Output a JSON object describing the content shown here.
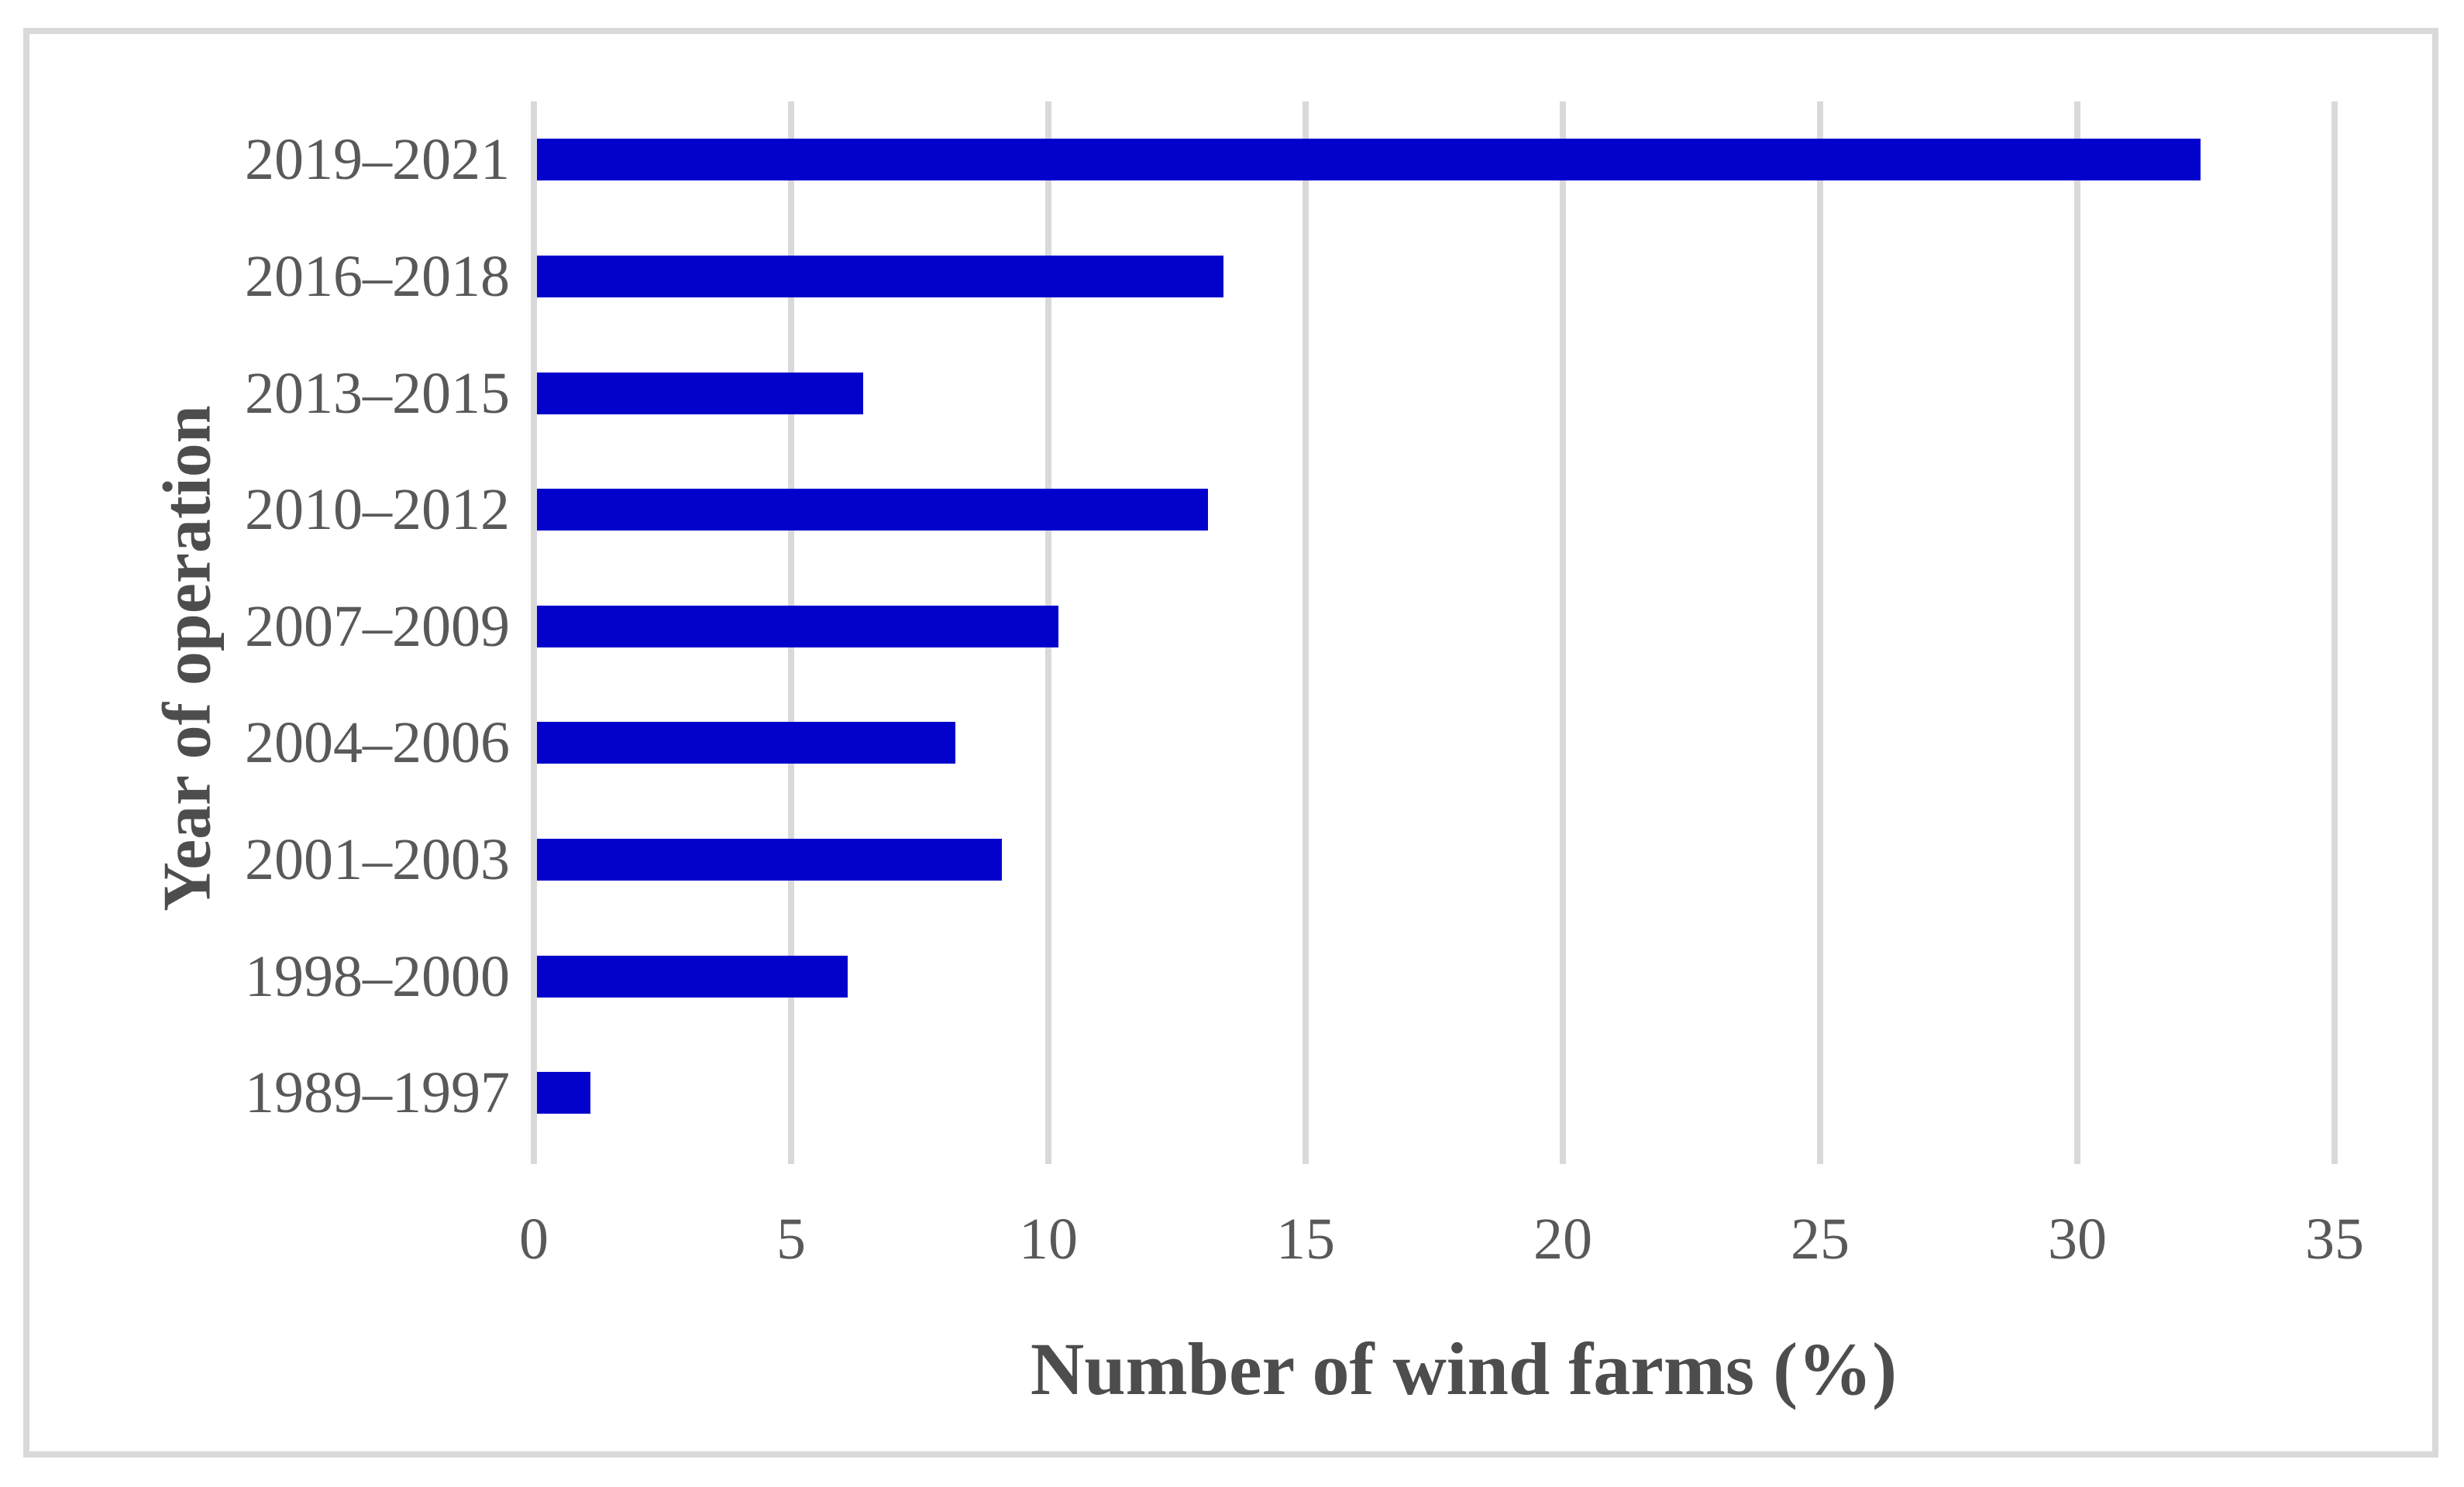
{
  "chart_data": {
    "type": "bar",
    "orientation": "horizontal",
    "title": "",
    "xlabel": "Number of wind farms (%)",
    "ylabel": "Year of operation",
    "categories": [
      "2019–2021",
      "2016–2018",
      "2013–2015",
      "2010–2012",
      "2007–2009",
      "2004–2006",
      "2001–2003",
      "1998–2000",
      "1989–1997"
    ],
    "values": [
      32.4,
      13.4,
      6.4,
      13.1,
      10.2,
      8.2,
      9.1,
      6.1,
      1.1
    ],
    "xlim": [
      0,
      35
    ],
    "xticks": [
      0,
      5,
      10,
      15,
      20,
      25,
      30,
      35
    ],
    "grid": "vertical-gridlines-on",
    "legend": "none",
    "colors": {
      "bar": "#0202cc",
      "gridline": "#d9d9d9",
      "frame_border": "#d9d9d9",
      "label_text": "#595959",
      "title_text": "#4d4d4d",
      "background": "#ffffff"
    }
  }
}
